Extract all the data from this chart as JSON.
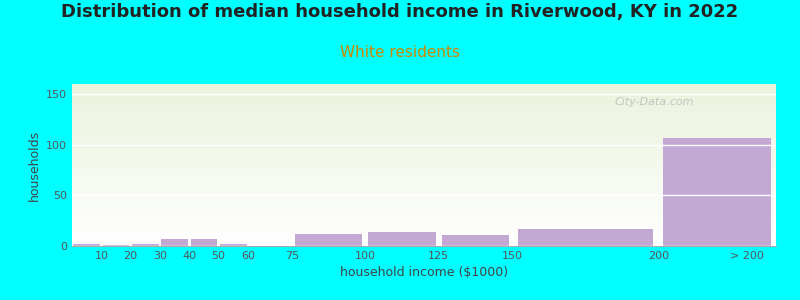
{
  "title": "Distribution of median household income in Riverwood, KY in 2022",
  "subtitle": "White residents",
  "xlabel": "household income ($1000)",
  "ylabel": "households",
  "background_color": "#00FFFF",
  "bar_color": "#c4a8d4",
  "categories": [
    "10",
    "20",
    "30",
    "40",
    "50",
    "60",
    "75",
    "100",
    "125",
    "150",
    "200",
    "> 200"
  ],
  "left_edges": [
    0,
    10,
    20,
    30,
    40,
    50,
    60,
    75,
    100,
    125,
    150,
    200
  ],
  "right_edges": [
    10,
    20,
    30,
    40,
    50,
    60,
    75,
    100,
    125,
    150,
    200,
    240
  ],
  "values": [
    2,
    1,
    2,
    7,
    7,
    2,
    0,
    12,
    14,
    11,
    17,
    107
  ],
  "ylim": [
    0,
    160
  ],
  "yticks": [
    0,
    50,
    100,
    150
  ],
  "xtick_positions": [
    10,
    20,
    30,
    40,
    50,
    60,
    75,
    100,
    125,
    150,
    200,
    230
  ],
  "xtick_labels": [
    "10",
    "20",
    "30",
    "40",
    "50",
    "60",
    "75",
    "100",
    "125",
    "150",
    "200",
    "> 200"
  ],
  "title_fontsize": 13,
  "subtitle_fontsize": 11,
  "subtitle_color": "#cc7722",
  "axis_label_fontsize": 9,
  "tick_fontsize": 8,
  "watermark": "City-Data.com"
}
